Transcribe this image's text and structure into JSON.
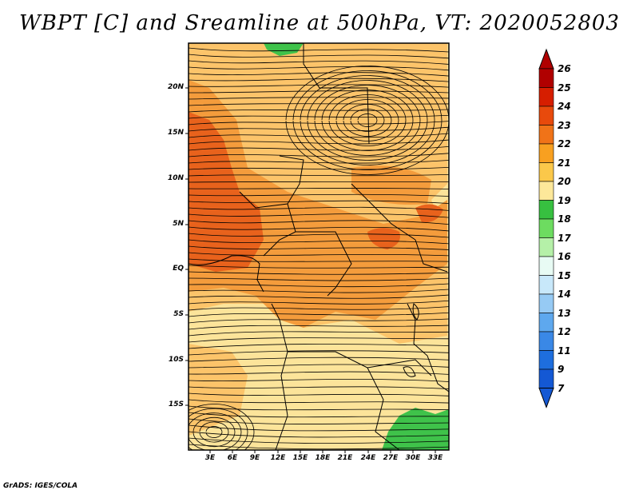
{
  "title": "WBPT [C] and Sreamline at 500hPa, VT: 2020052803",
  "credit": "GrADS: IGES/COLA",
  "map": {
    "lat_labels": [
      "20N",
      "15N",
      "10N",
      "5N",
      "EQ",
      "5S",
      "10S",
      "15S"
    ],
    "lon_labels": [
      "3E",
      "6E",
      "9E",
      "12E",
      "15E",
      "18E",
      "21E",
      "24E",
      "27E",
      "30E",
      "33E"
    ],
    "fill_colors": {
      "dark_orange": "#e8621c",
      "orange": "#f49c3c",
      "light_orange": "#fcc46a",
      "pale_yellow": "#fce49a",
      "green": "#3fc24a"
    }
  },
  "colorbar": {
    "labels": [
      "26",
      "25",
      "24",
      "23",
      "22",
      "21",
      "20",
      "19",
      "18",
      "17",
      "16",
      "15",
      "14",
      "13",
      "12",
      "11",
      "9",
      "7"
    ],
    "colors": [
      "#b00000",
      "#d61e00",
      "#e84a0c",
      "#f07318",
      "#f8a020",
      "#fbc84a",
      "#fde89a",
      "#37c040",
      "#6ddc60",
      "#b5f0a8",
      "#e8fbf4",
      "#c8e8fa",
      "#96caf4",
      "#5ea8ee",
      "#3a88e6",
      "#1e6ede",
      "#1458d4"
    ]
  }
}
